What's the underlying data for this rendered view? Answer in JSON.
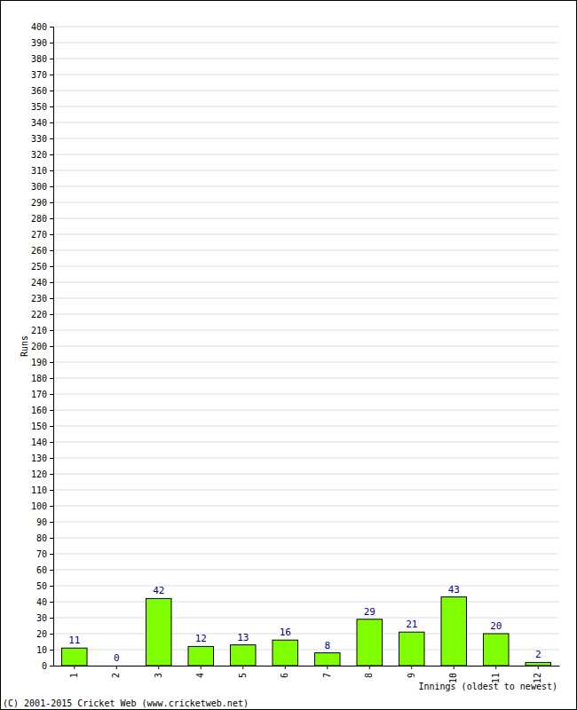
{
  "chart_data": {
    "type": "bar",
    "categories": [
      "1",
      "2",
      "3",
      "4",
      "5",
      "6",
      "7",
      "8",
      "9",
      "10",
      "11",
      "12"
    ],
    "values": [
      11,
      0,
      42,
      12,
      13,
      16,
      8,
      29,
      21,
      43,
      20,
      2
    ],
    "color": "#80ff00",
    "x_label": "Innings (oldest to newest)",
    "y_label": "Runs",
    "annotations": [
      "(C) 2001-2015 Cricket Web (www.cricketweb.net)"
    ],
    "ylim": [
      0,
      400
    ],
    "yticks": [
      0,
      10,
      20,
      30,
      40,
      50,
      60,
      70,
      80,
      90,
      100,
      110,
      120,
      130,
      140,
      150,
      160,
      170,
      180,
      190,
      200,
      210,
      220,
      230,
      240,
      250,
      260,
      270,
      280,
      290,
      300,
      310,
      320,
      330,
      340,
      350,
      360,
      370,
      380,
      390,
      400
    ],
    "grid": true,
    "data_labels": true
  }
}
